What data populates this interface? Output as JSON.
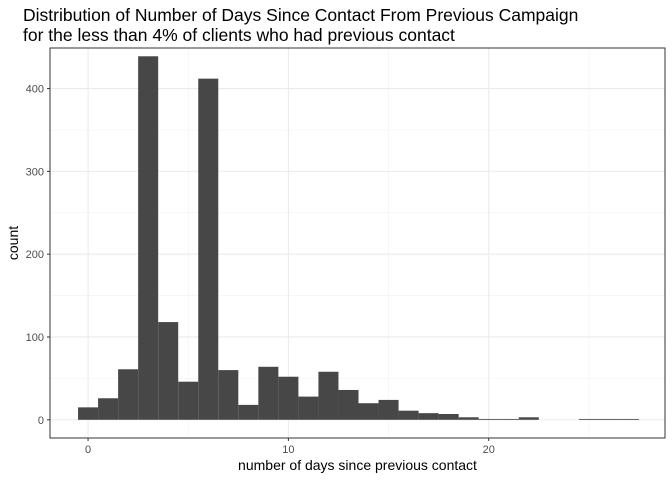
{
  "chart_data": {
    "type": "bar",
    "title_line1": "Distribution of Number of Days Since Contact From Previous Campaign",
    "title_line2": "for the less than 4% of clients who had previous contact",
    "xlabel": "number of days since previous contact",
    "ylabel": "count",
    "xlim": [
      -1.9,
      28.8
    ],
    "ylim": [
      -22,
      449
    ],
    "x_ticks": [
      0,
      10,
      20
    ],
    "y_ticks": [
      0,
      100,
      200,
      300,
      400
    ],
    "bin_width": 1,
    "bins": [
      {
        "center": 0,
        "count": 15
      },
      {
        "center": 1,
        "count": 26
      },
      {
        "center": 2,
        "count": 61
      },
      {
        "center": 3,
        "count": 439
      },
      {
        "center": 4,
        "count": 118
      },
      {
        "center": 5,
        "count": 46
      },
      {
        "center": 6,
        "count": 412
      },
      {
        "center": 7,
        "count": 60
      },
      {
        "center": 8,
        "count": 18
      },
      {
        "center": 9,
        "count": 64
      },
      {
        "center": 10,
        "count": 52
      },
      {
        "center": 11,
        "count": 28
      },
      {
        "center": 12,
        "count": 58
      },
      {
        "center": 13,
        "count": 36
      },
      {
        "center": 14,
        "count": 20
      },
      {
        "center": 15,
        "count": 24
      },
      {
        "center": 16,
        "count": 11
      },
      {
        "center": 17,
        "count": 8
      },
      {
        "center": 18,
        "count": 7
      },
      {
        "center": 19,
        "count": 3
      },
      {
        "center": 20,
        "count": 1
      },
      {
        "center": 21,
        "count": 1
      },
      {
        "center": 22,
        "count": 3
      },
      {
        "center": 23,
        "count": 0
      },
      {
        "center": 24,
        "count": 0
      },
      {
        "center": 25,
        "count": 1
      },
      {
        "center": 26,
        "count": 1
      },
      {
        "center": 27,
        "count": 1
      }
    ],
    "bar_color": "#474747",
    "grid": true
  }
}
